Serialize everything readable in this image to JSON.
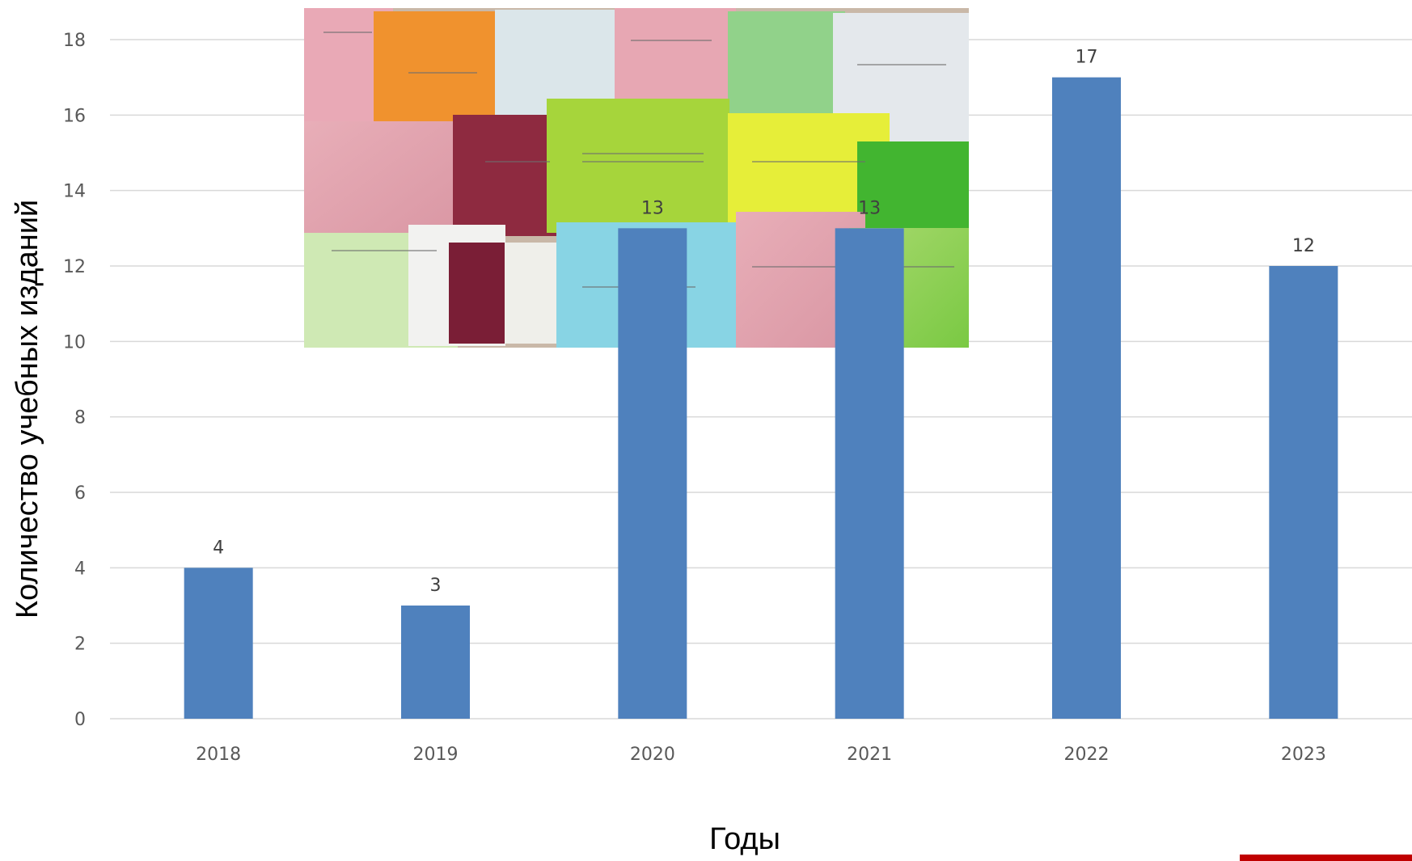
{
  "chart_data": {
    "type": "bar",
    "categories": [
      "2018",
      "2019",
      "2020",
      "2021",
      "2022",
      "2023"
    ],
    "values": [
      4,
      3,
      13,
      13,
      17,
      12
    ],
    "data_labels": [
      "4",
      "3",
      "13",
      "13",
      "17",
      "12"
    ],
    "title": "",
    "xlabel": "Годы",
    "ylabel": "Количество учебных изданий",
    "ylim": [
      0,
      18
    ],
    "y_ticks": [
      "0",
      "2",
      "4",
      "6",
      "8",
      "10",
      "12",
      "14",
      "16",
      "18"
    ],
    "grid": true,
    "legend": "none"
  },
  "colors": {
    "bar": "#4F81BD",
    "grid": "#D9D9D9",
    "accent_bar": "#C00000"
  },
  "overlay_image": {
    "icon": "photo-of-textbooks-collage"
  }
}
